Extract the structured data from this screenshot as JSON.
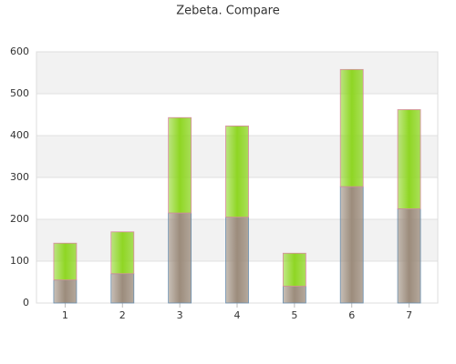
{
  "chart_data": {
    "type": "bar",
    "stacked": true,
    "title": "Zebeta. Compare",
    "categories": [
      "1",
      "2",
      "3",
      "4",
      "5",
      "6",
      "7"
    ],
    "series": [
      {
        "color": "#9c8c7c",
        "values": [
          55,
          70,
          215,
          205,
          40,
          278,
          225
        ]
      },
      {
        "color": "#8fd624",
        "values": [
          88,
          100,
          228,
          218,
          79,
          280,
          237
        ]
      }
    ],
    "ylim": [
      0,
      600
    ],
    "yticks": [
      0,
      100,
      200,
      300,
      400,
      500,
      600
    ],
    "grid": true
  }
}
